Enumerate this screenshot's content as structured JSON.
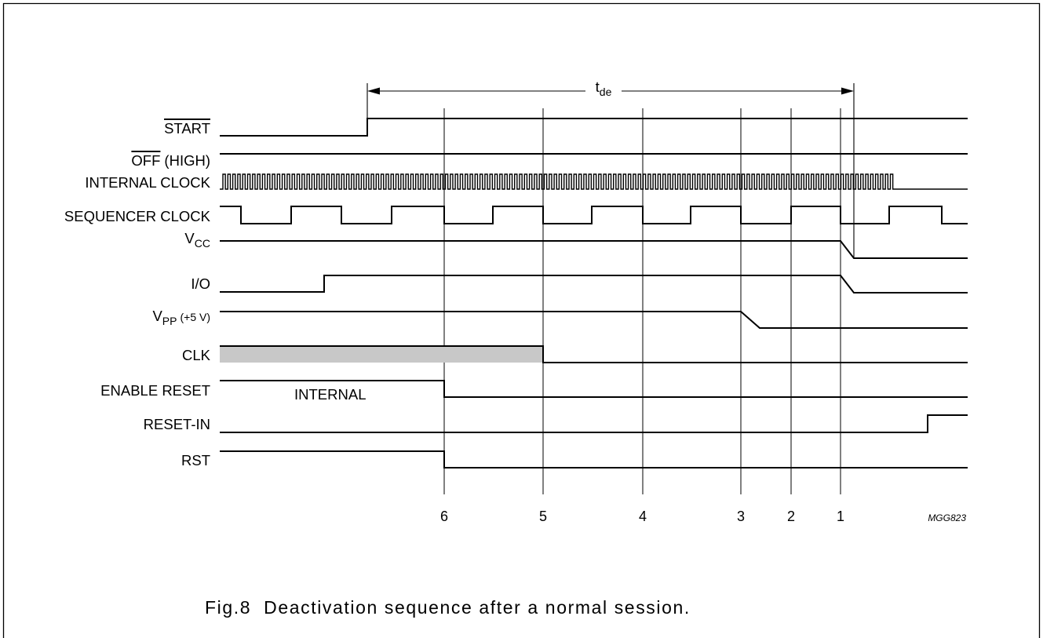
{
  "figure": {
    "signals": {
      "start": "START",
      "off": "OFF",
      "off_suffix": "(HIGH)",
      "internal_clock": "INTERNAL CLOCK",
      "sequencer_clock": "SEQUENCER CLOCK",
      "vcc_main": "V",
      "vcc_sub": "CC",
      "io": "I/O",
      "vpp_main": "V",
      "vpp_sub": "PP",
      "vpp_suffix": "(+5 V)",
      "clk": "CLK",
      "enable_reset": "ENABLE RESET",
      "reset_in": "RESET-IN",
      "rst": "RST"
    },
    "annotations": {
      "internal": "INTERNAL",
      "tde_main": "t",
      "tde_sub": "de",
      "figure_code": "MGG823"
    },
    "markers": [
      "6",
      "5",
      "4",
      "3",
      "2",
      "1"
    ],
    "caption": "Fig.8  Deactivation sequence after a normal session.",
    "colors": {
      "line": "#000000",
      "clk_active_fill": "#c8c8c8"
    }
  }
}
